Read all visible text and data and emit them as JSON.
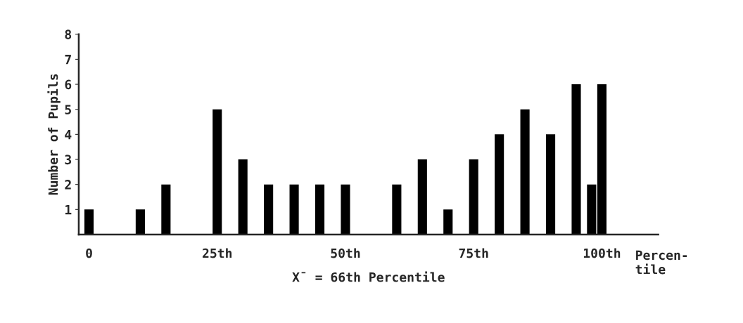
{
  "chart_data": {
    "type": "bar",
    "ylabel": "Number of Pupils",
    "xlabel": "X̄ = 66th Percentile",
    "annotations": [
      "Percen-\ntile"
    ],
    "x": [
      0,
      10,
      15,
      25,
      30,
      35,
      40,
      45,
      50,
      60,
      65,
      70,
      75,
      80,
      85,
      90,
      95,
      98,
      100
    ],
    "values": [
      1,
      1,
      2,
      5,
      3,
      2,
      2,
      2,
      2,
      2,
      3,
      1,
      3,
      4,
      5,
      4,
      6,
      2,
      6
    ],
    "color": "#000000",
    "xlim": [
      -2,
      111
    ],
    "xticks": [
      0,
      {
        "value": 25,
        "label": "25th"
      },
      {
        "value": 50,
        "label": "50th"
      },
      {
        "value": 75,
        "label": "75th"
      },
      {
        "value": 100,
        "label": "100th"
      }
    ],
    "ylim": [
      0,
      8
    ],
    "yticks": [
      1,
      2,
      3,
      4,
      5,
      6,
      7,
      8
    ],
    "grid": false,
    "legend": false
  }
}
